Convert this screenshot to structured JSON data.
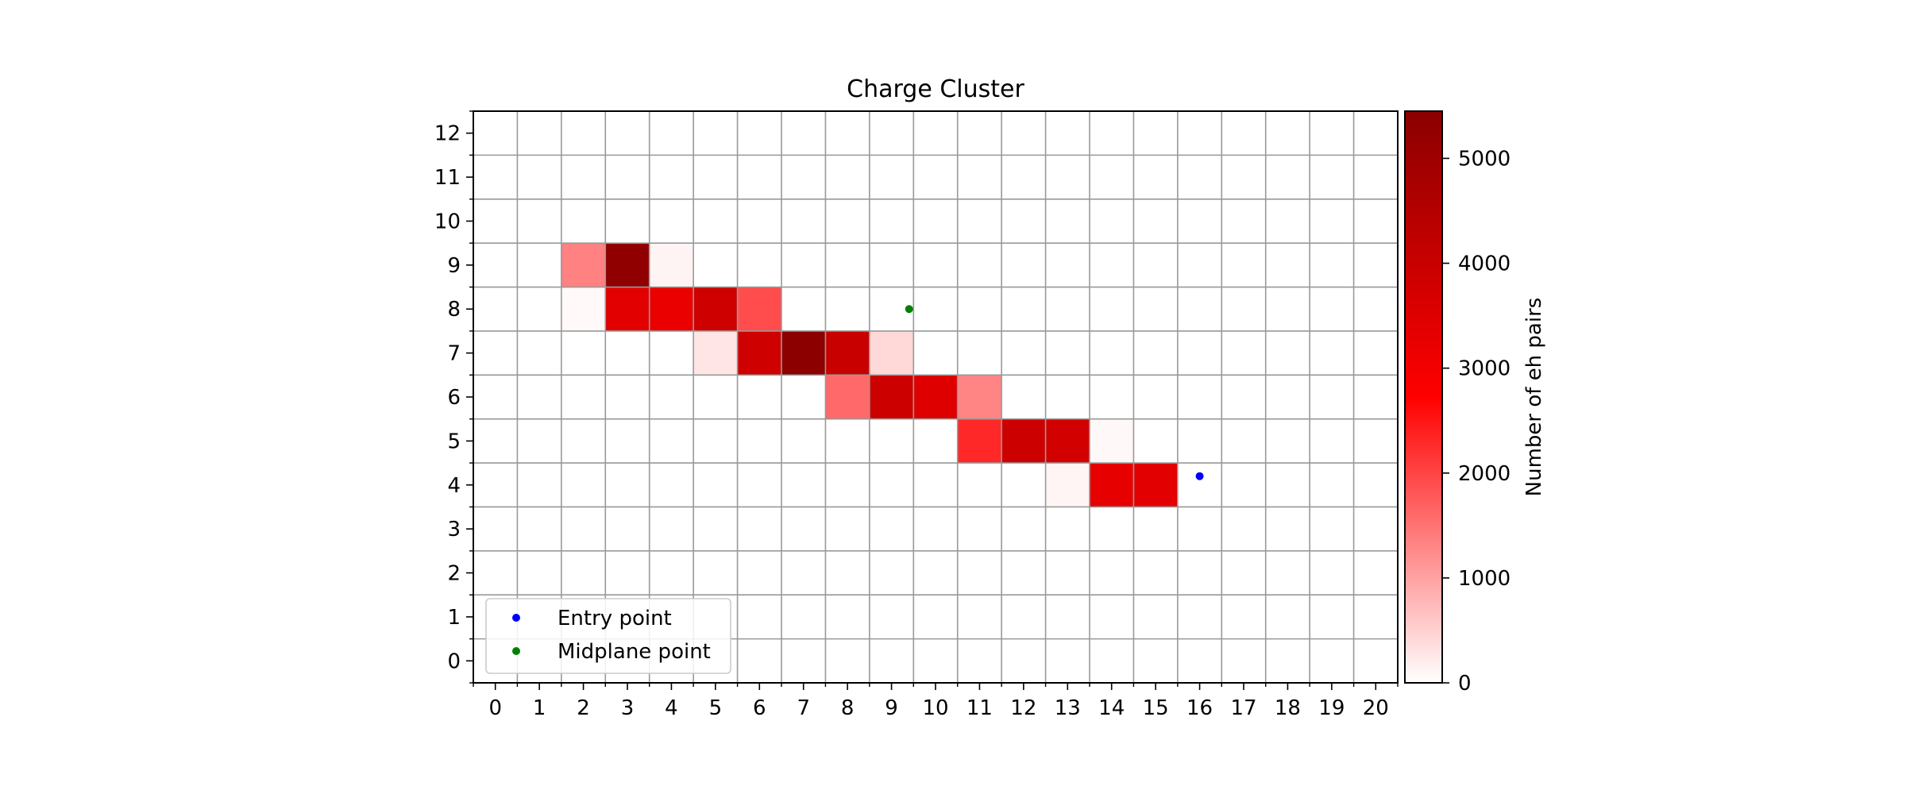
{
  "chart_data": {
    "type": "heatmap",
    "title": "Charge Cluster",
    "xlabel": "",
    "ylabel": "",
    "x_ticks": [
      0,
      1,
      2,
      3,
      4,
      5,
      6,
      7,
      8,
      9,
      10,
      11,
      12,
      13,
      14,
      15,
      16,
      17,
      18,
      19,
      20
    ],
    "y_ticks": [
      0,
      1,
      2,
      3,
      4,
      5,
      6,
      7,
      8,
      9,
      10,
      11,
      12
    ],
    "xlim": [
      -0.5,
      20.5
    ],
    "ylim": [
      -0.5,
      12.5
    ],
    "grid": true,
    "colormap": [
      "#ffffff",
      "#ff0000",
      "#8b0000"
    ],
    "colorbar": {
      "label": "Number of eh pairs",
      "min": 0,
      "max": 5450,
      "ticks": [
        0,
        1000,
        2000,
        3000,
        4000,
        5000
      ]
    },
    "cells": [
      {
        "x": 2,
        "y": 9,
        "value": 1350
      },
      {
        "x": 3,
        "y": 9,
        "value": 5300
      },
      {
        "x": 4,
        "y": 9,
        "value": 120
      },
      {
        "x": 2,
        "y": 8,
        "value": 60
      },
      {
        "x": 3,
        "y": 8,
        "value": 3400
      },
      {
        "x": 4,
        "y": 8,
        "value": 3200
      },
      {
        "x": 5,
        "y": 8,
        "value": 3850
      },
      {
        "x": 6,
        "y": 8,
        "value": 1900
      },
      {
        "x": 5,
        "y": 7,
        "value": 280
      },
      {
        "x": 6,
        "y": 7,
        "value": 3850
      },
      {
        "x": 7,
        "y": 7,
        "value": 5400
      },
      {
        "x": 8,
        "y": 7,
        "value": 4000
      },
      {
        "x": 9,
        "y": 7,
        "value": 420
      },
      {
        "x": 8,
        "y": 6,
        "value": 1600
      },
      {
        "x": 9,
        "y": 6,
        "value": 3900
      },
      {
        "x": 10,
        "y": 6,
        "value": 3500
      },
      {
        "x": 11,
        "y": 6,
        "value": 1300
      },
      {
        "x": 11,
        "y": 5,
        "value": 2300
      },
      {
        "x": 12,
        "y": 5,
        "value": 3900
      },
      {
        "x": 13,
        "y": 5,
        "value": 3750
      },
      {
        "x": 14,
        "y": 5,
        "value": 80
      },
      {
        "x": 13,
        "y": 4,
        "value": 110
      },
      {
        "x": 14,
        "y": 4,
        "value": 3300
      },
      {
        "x": 15,
        "y": 4,
        "value": 3400
      }
    ],
    "series": [
      {
        "name": "Entry point",
        "color": "#0000ff",
        "x": [
          16.0
        ],
        "y": [
          4.2
        ]
      },
      {
        "name": "Midplane point",
        "color": "#008000",
        "x": [
          9.4
        ],
        "y": [
          8.0
        ]
      }
    ],
    "legend": {
      "placement": "lower-left"
    }
  }
}
